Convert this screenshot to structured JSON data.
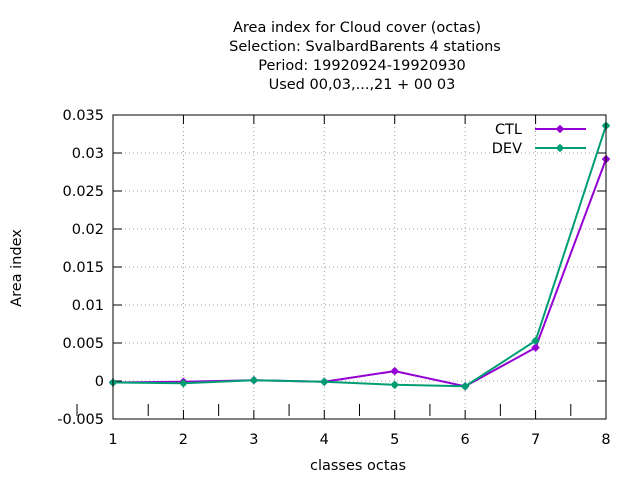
{
  "chart_data": {
    "type": "line",
    "title_lines": [
      "Area index  for Cloud cover (octas)",
      "Selection: SvalbardBarents       4 stations",
      "Period: 19920924-19920930",
      "Used  00,03,...,21  + 00 03"
    ],
    "xlabel": "classes octas",
    "ylabel": "Area index",
    "xlim": [
      1,
      8
    ],
    "ylim": [
      -0.005,
      0.035
    ],
    "x_ticks": [
      "1",
      "2",
      "3",
      "4",
      "5",
      "6",
      "7",
      "8"
    ],
    "y_ticks": [
      "-0.005",
      "0",
      "0.005",
      "0.01",
      "0.015",
      "0.02",
      "0.025",
      "0.03",
      "0.035"
    ],
    "grid": true,
    "legend_position": "top-right",
    "x": [
      1,
      2,
      3,
      4,
      5,
      6,
      7,
      8
    ],
    "series": [
      {
        "name": "CTL",
        "color": "#9400d3",
        "values": [
          -0.0002,
          -0.0001,
          0.0001,
          -0.0001,
          0.0013,
          -0.0007,
          0.0044,
          0.0292
        ]
      },
      {
        "name": "DEV",
        "color": "#009e73",
        "values": [
          -0.0002,
          -0.0003,
          0.0001,
          -0.0001,
          -0.0005,
          -0.0007,
          0.0053,
          0.0336
        ]
      }
    ]
  }
}
